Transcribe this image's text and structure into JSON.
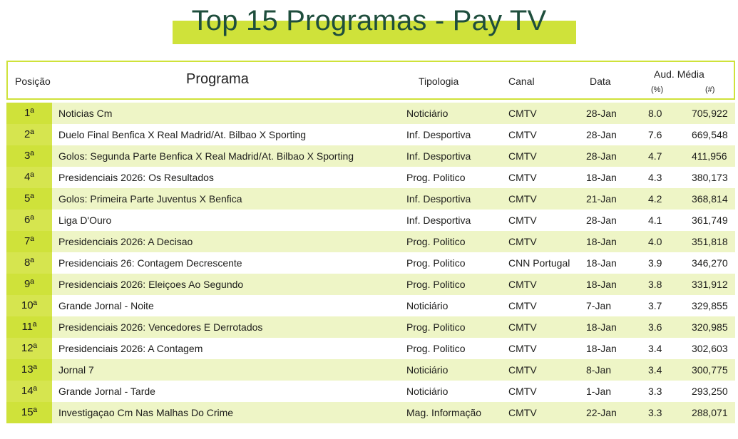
{
  "title": "Top 15 Programas - Pay TV",
  "colors": {
    "accent": "#cfe23a",
    "title": "#1f4e3d",
    "row_alt": "#eef5c6"
  },
  "headers": {
    "posicao": "Posição",
    "programa": "Programa",
    "tipologia": "Tipologia",
    "canal": "Canal",
    "data": "Data",
    "aud": "Aud. Média",
    "pct": "(%)",
    "num": "(#)"
  },
  "chart_data": {
    "type": "table",
    "title": "Top 15 Programas - Pay TV",
    "columns": [
      "Posição",
      "Programa",
      "Tipologia",
      "Canal",
      "Data",
      "Aud. Média (%)",
      "Aud. Média (#)"
    ],
    "rows": [
      {
        "pos": "1ª",
        "programa": "Noticias Cm",
        "tipologia": "Noticiário",
        "canal": "CMTV",
        "data": "28-Jan",
        "pct": "8.0",
        "num": "705,922"
      },
      {
        "pos": "2ª",
        "programa": "Duelo Final Benfica X Real Madrid/At. Bilbao X Sporting",
        "tipologia": "Inf. Desportiva",
        "canal": "CMTV",
        "data": "28-Jan",
        "pct": "7.6",
        "num": "669,548"
      },
      {
        "pos": "3ª",
        "programa": "Golos: Segunda Parte Benfica X Real Madrid/At. Bilbao X Sporting",
        "tipologia": "Inf. Desportiva",
        "canal": "CMTV",
        "data": "28-Jan",
        "pct": "4.7",
        "num": "411,956"
      },
      {
        "pos": "4ª",
        "programa": "Presidenciais 2026: Os Resultados",
        "tipologia": "Prog. Politico",
        "canal": "CMTV",
        "data": "18-Jan",
        "pct": "4.3",
        "num": "380,173"
      },
      {
        "pos": "5ª",
        "programa": "Golos: Primeira Parte Juventus X Benfica",
        "tipologia": "Inf. Desportiva",
        "canal": "CMTV",
        "data": "21-Jan",
        "pct": "4.2",
        "num": "368,814"
      },
      {
        "pos": "6ª",
        "programa": "Liga D'Ouro",
        "tipologia": "Inf. Desportiva",
        "canal": "CMTV",
        "data": "28-Jan",
        "pct": "4.1",
        "num": "361,749"
      },
      {
        "pos": "7ª",
        "programa": "Presidenciais 2026: A Decisao",
        "tipologia": "Prog. Politico",
        "canal": "CMTV",
        "data": "18-Jan",
        "pct": "4.0",
        "num": "351,818"
      },
      {
        "pos": "8ª",
        "programa": "Presidenciais 26: Contagem Decrescente",
        "tipologia": "Prog. Politico",
        "canal": "CNN Portugal",
        "data": "18-Jan",
        "pct": "3.9",
        "num": "346,270"
      },
      {
        "pos": "9ª",
        "programa": "Presidenciais 2026: Eleiçoes Ao Segundo",
        "tipologia": "Prog. Politico",
        "canal": "CMTV",
        "data": "18-Jan",
        "pct": "3.8",
        "num": "331,912"
      },
      {
        "pos": "10ª",
        "programa": "Grande Jornal - Noite",
        "tipologia": "Noticiário",
        "canal": "CMTV",
        "data": "7-Jan",
        "pct": "3.7",
        "num": "329,855"
      },
      {
        "pos": "11ª",
        "programa": "Presidenciais 2026: Vencedores E Derrotados",
        "tipologia": "Prog. Politico",
        "canal": "CMTV",
        "data": "18-Jan",
        "pct": "3.6",
        "num": "320,985"
      },
      {
        "pos": "12ª",
        "programa": "Presidenciais 2026: A Contagem",
        "tipologia": "Prog. Politico",
        "canal": "CMTV",
        "data": "18-Jan",
        "pct": "3.4",
        "num": "302,603"
      },
      {
        "pos": "13ª",
        "programa": "Jornal 7",
        "tipologia": "Noticiário",
        "canal": "CMTV",
        "data": "8-Jan",
        "pct": "3.4",
        "num": "300,775"
      },
      {
        "pos": "14ª",
        "programa": "Grande Jornal - Tarde",
        "tipologia": "Noticiário",
        "canal": "CMTV",
        "data": "1-Jan",
        "pct": "3.3",
        "num": "293,250"
      },
      {
        "pos": "15ª",
        "programa": "Investigaçao Cm Nas Malhas Do Crime",
        "tipologia": "Mag. Informação",
        "canal": "CMTV",
        "data": "22-Jan",
        "pct": "3.3",
        "num": "288,071"
      }
    ]
  }
}
